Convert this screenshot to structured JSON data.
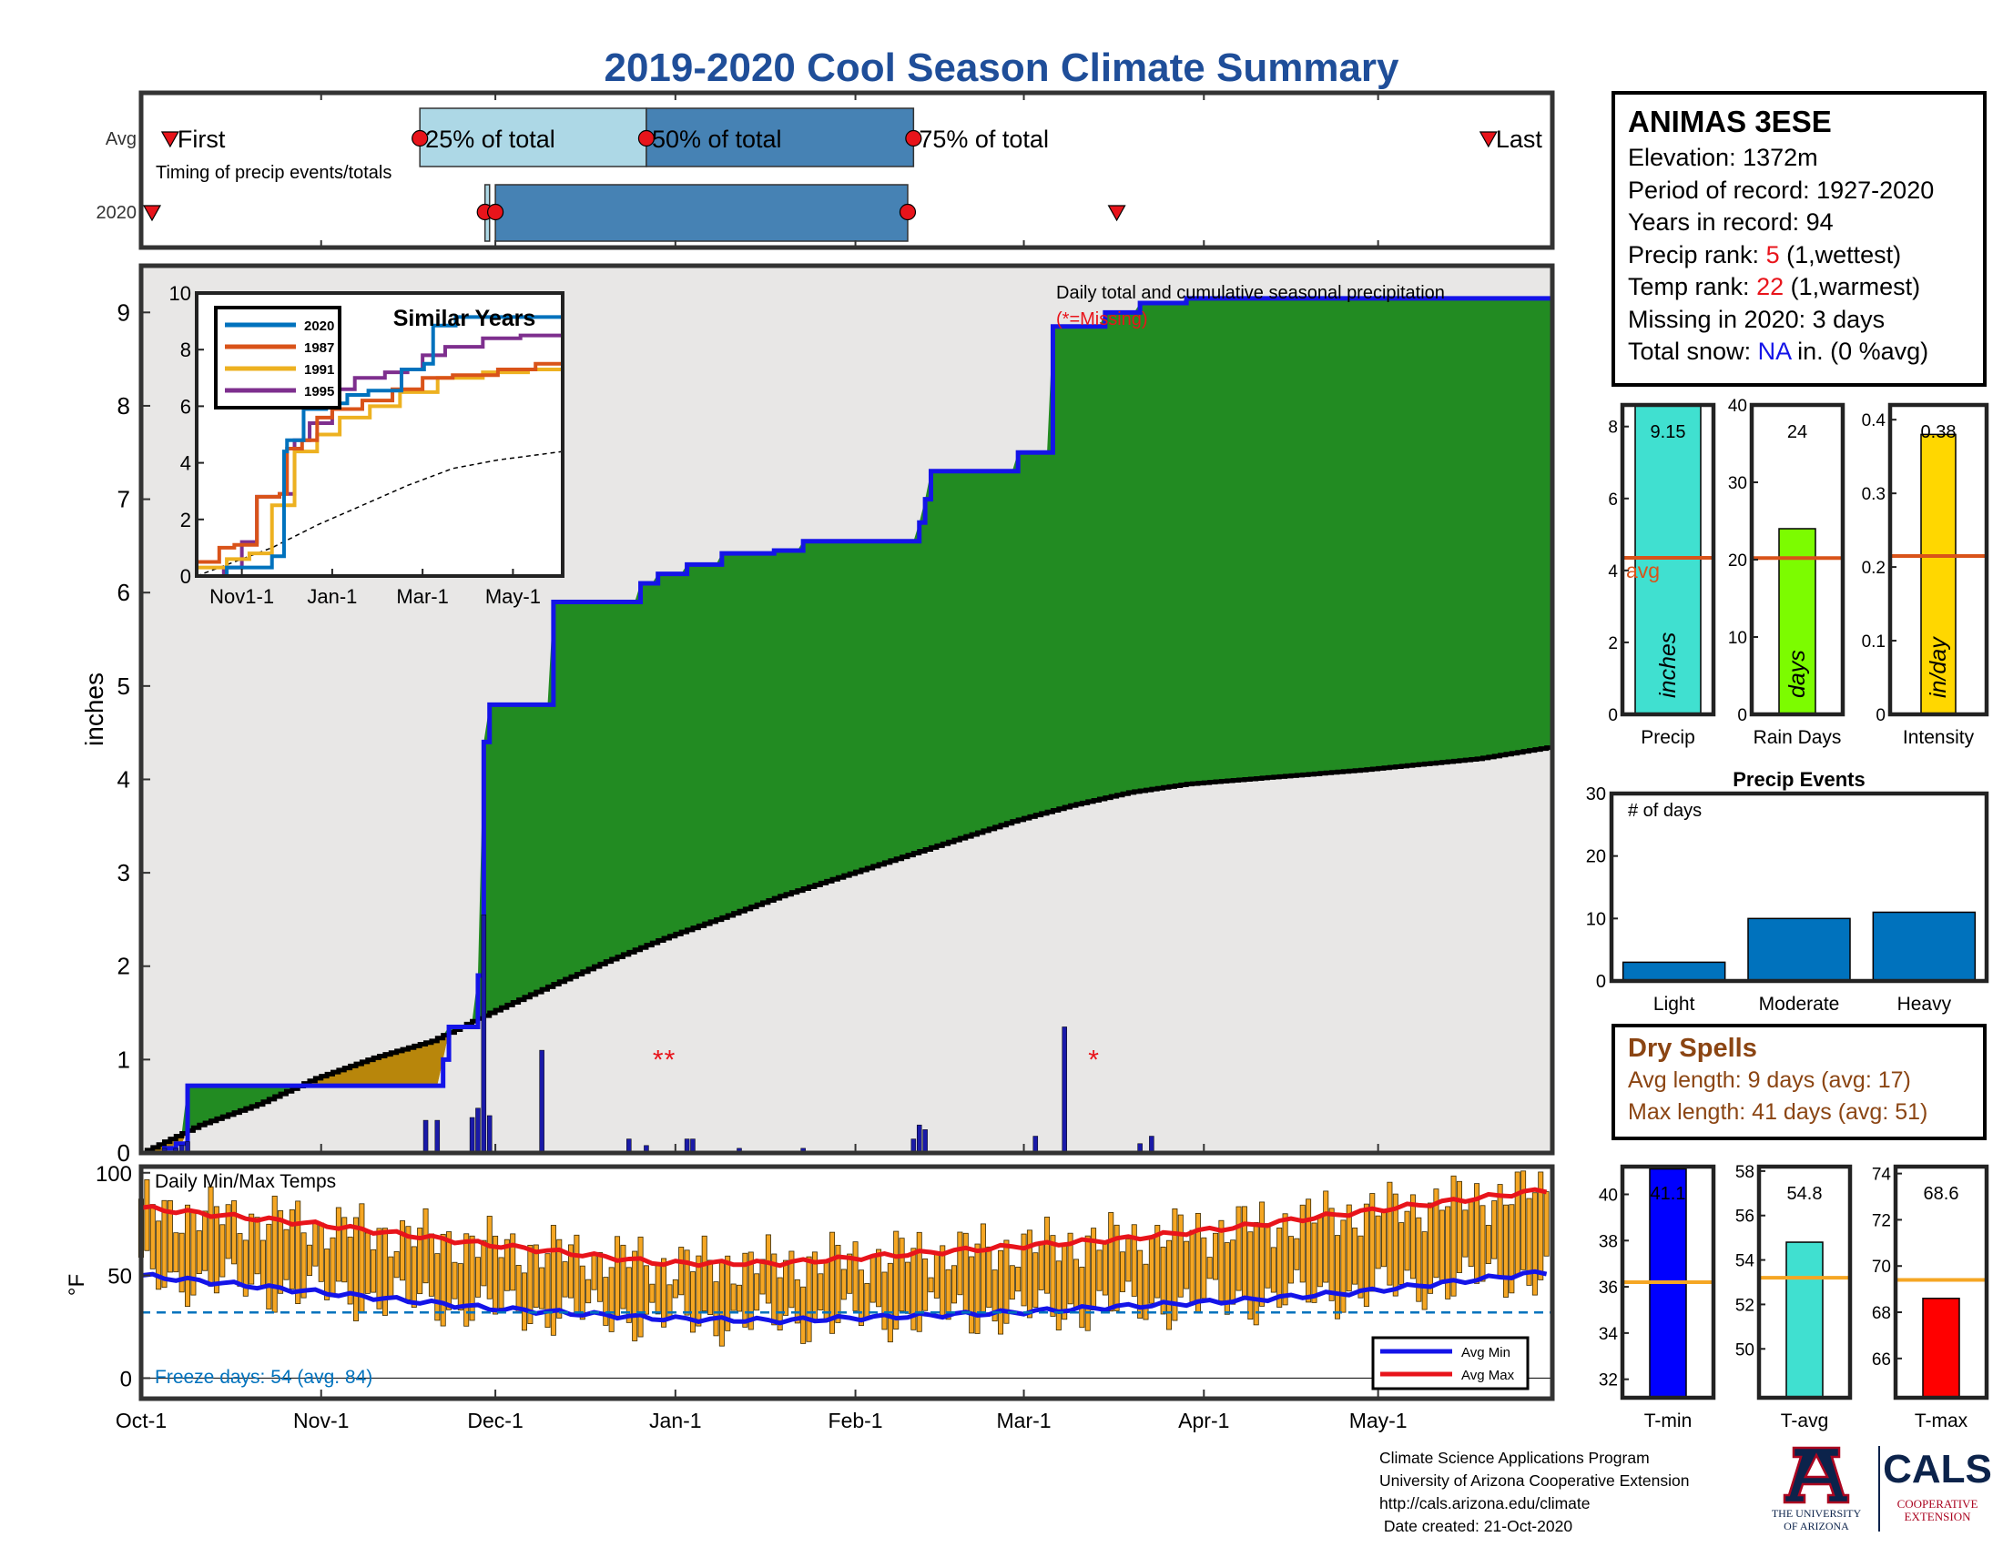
{
  "title": "2019-2020 Cool Season Climate Summary",
  "station": {
    "name": "ANIMAS 3ESE",
    "lines": [
      {
        "label": "Elevation: ",
        "value": "1372m",
        "value_color": "",
        "suffix": ""
      },
      {
        "label": "Period of record: ",
        "value": "1927-2020",
        "value_color": "",
        "suffix": ""
      },
      {
        "label": "Years in record: ",
        "value": "94",
        "value_color": "",
        "suffix": ""
      },
      {
        "label": "Precip rank: ",
        "value": "5",
        "value_color": "red",
        "suffix": " (1,wettest)"
      },
      {
        "label": "Temp rank: ",
        "value": "22",
        "value_color": "red",
        "suffix": " (1,warmest)"
      },
      {
        "label": "Missing in 2020: ",
        "value": "3 days",
        "value_color": "",
        "suffix": ""
      },
      {
        "label": "Total snow: ",
        "value": "NA",
        "value_color": "blue",
        "suffix": " in. (0 %avg)"
      }
    ]
  },
  "dry_spells": {
    "title": "Dry Spells",
    "avg": "Avg length: 9 days (avg: 17)",
    "max": "Max length: 41 days (avg: 51)"
  },
  "credits": {
    "line1": "Climate Science Applications Program",
    "line2": "University of Arizona Cooperative Extension",
    "line3": "http://cals.arizona.edu/climate",
    "line4": " Date created: 21-Oct-2020"
  },
  "logos": {
    "ua_text1": "THE UNIVERSITY",
    "ua_text2": "OF ARIZONA",
    "cals_text": "CALS",
    "cals_sub1": "COOPERATIVE",
    "cals_sub2": "EXTENSION"
  },
  "chart_data": [
    {
      "type": "bar",
      "id": "timing",
      "title": "Timing of precip events/totals",
      "categories": [
        "Avg",
        "2020"
      ],
      "labels": {
        "first": "First",
        "p25": "25% of total",
        "p50": "50% of total",
        "p75": "75% of total",
        "last": "Last"
      },
      "avg": {
        "first": "Oct-6",
        "p25": "Nov-18",
        "p50": "Dec-27",
        "p75": "Feb-11",
        "last": "May-20"
      },
      "year2020": {
        "first": "Oct-1",
        "p25": "Nov-30",
        "p50": "Dec-1",
        "p75": "Feb-10",
        "last": "Mar-17"
      }
    },
    {
      "type": "area",
      "id": "precip",
      "title": "Daily total and cumulative seasonal precipitation",
      "subtitle": "(*=Missing)",
      "ylabel": "inches",
      "ylim": [
        0,
        9.5
      ],
      "yticks": [
        0,
        1,
        2,
        3,
        4,
        5,
        6,
        7,
        8,
        9
      ],
      "xticks": [
        "Oct-1",
        "Nov-1",
        "Dec-1",
        "Jan-1",
        "Feb-1",
        "Mar-1",
        "Apr-1",
        "May-1"
      ],
      "x_units": "day of season (Oct-1 = 0)",
      "cumulative_2020": [
        [
          0,
          0
        ],
        [
          4,
          0.05
        ],
        [
          6,
          0.1
        ],
        [
          7,
          0.1
        ],
        [
          8,
          0.72
        ],
        [
          20,
          0.72
        ],
        [
          40,
          0.72
        ],
        [
          50,
          0.72
        ],
        [
          51,
          0.72
        ],
        [
          52,
          1.0
        ],
        [
          53,
          1.35
        ],
        [
          57,
          1.35
        ],
        [
          58,
          1.9
        ],
        [
          59,
          4.4
        ],
        [
          60,
          4.8
        ],
        [
          70,
          4.8
        ],
        [
          71,
          5.9
        ],
        [
          85,
          5.9
        ],
        [
          86,
          6.1
        ],
        [
          89,
          6.2
        ],
        [
          94,
          6.3
        ],
        [
          100,
          6.42
        ],
        [
          109,
          6.45
        ],
        [
          114,
          6.55
        ],
        [
          133,
          6.55
        ],
        [
          134,
          6.75
        ],
        [
          135,
          7.0
        ],
        [
          136,
          7.3
        ],
        [
          145,
          7.3
        ],
        [
          150,
          7.3
        ],
        [
          151,
          7.5
        ],
        [
          156,
          7.5
        ],
        [
          157,
          8.85
        ],
        [
          165,
          8.85
        ],
        [
          166,
          9.0
        ],
        [
          172,
          9.1
        ],
        [
          180,
          9.15
        ],
        [
          243,
          9.15
        ]
      ],
      "avg_cumulative": [
        [
          0,
          0
        ],
        [
          10,
          0.3
        ],
        [
          20,
          0.52
        ],
        [
          30,
          0.8
        ],
        [
          40,
          1.02
        ],
        [
          50,
          1.2
        ],
        [
          60,
          1.5
        ],
        [
          70,
          1.78
        ],
        [
          80,
          2.05
        ],
        [
          90,
          2.3
        ],
        [
          100,
          2.52
        ],
        [
          110,
          2.75
        ],
        [
          120,
          2.95
        ],
        [
          130,
          3.15
        ],
        [
          140,
          3.35
        ],
        [
          150,
          3.55
        ],
        [
          160,
          3.72
        ],
        [
          170,
          3.86
        ],
        [
          180,
          3.95
        ],
        [
          190,
          4.0
        ],
        [
          200,
          4.05
        ],
        [
          210,
          4.1
        ],
        [
          220,
          4.16
        ],
        [
          230,
          4.22
        ],
        [
          243,
          4.35
        ]
      ],
      "daily": [
        [
          4,
          0.05
        ],
        [
          6,
          0.05
        ],
        [
          7,
          0.08
        ],
        [
          8,
          0.12
        ],
        [
          49,
          0.35
        ],
        [
          51,
          0.35
        ],
        [
          57,
          0.38
        ],
        [
          58,
          0.48
        ],
        [
          59,
          2.55
        ],
        [
          60,
          0.4
        ],
        [
          69,
          1.1
        ],
        [
          84,
          0.15
        ],
        [
          87,
          0.08
        ],
        [
          94,
          0.15
        ],
        [
          95,
          0.15
        ],
        [
          103,
          0.05
        ],
        [
          114,
          0.05
        ],
        [
          133,
          0.15
        ],
        [
          134,
          0.3
        ],
        [
          135,
          0.25
        ],
        [
          154,
          0.18
        ],
        [
          159,
          1.35
        ],
        [
          172,
          0.1
        ],
        [
          174,
          0.18
        ]
      ],
      "missing_days": [
        89,
        91,
        164
      ],
      "inset": {
        "title": "Similar Years",
        "xticks": [
          "Nov1-1",
          "Jan-1",
          "Mar-1",
          "May-1"
        ],
        "yticks": [
          0,
          2,
          4,
          6,
          8,
          10
        ],
        "ylim": [
          0,
          10
        ],
        "series": [
          {
            "name": "2020",
            "color": "#0072bd",
            "points": [
              [
                0,
                0
              ],
              [
                20,
                0.3
              ],
              [
                50,
                0.7
              ],
              [
                58,
                4.4
              ],
              [
                60,
                4.8
              ],
              [
                71,
                5.9
              ],
              [
                86,
                6.1
              ],
              [
                100,
                6.4
              ],
              [
                114,
                6.55
              ],
              [
                136,
                7.3
              ],
              [
                151,
                7.5
              ],
              [
                157,
                8.85
              ],
              [
                172,
                9.15
              ],
              [
                243,
                9.15
              ]
            ]
          },
          {
            "name": "1987",
            "color": "#d95319",
            "points": [
              [
                0,
                0.5
              ],
              [
                15,
                1.0
              ],
              [
                25,
                1.1
              ],
              [
                40,
                2.8
              ],
              [
                55,
                2.9
              ],
              [
                60,
                4.5
              ],
              [
                70,
                4.8
              ],
              [
                80,
                5.6
              ],
              [
                90,
                5.9
              ],
              [
                110,
                6.2
              ],
              [
                130,
                6.6
              ],
              [
                150,
                7.0
              ],
              [
                170,
                7.1
              ],
              [
                200,
                7.3
              ],
              [
                225,
                7.5
              ],
              [
                243,
                7.7
              ]
            ]
          },
          {
            "name": "1991",
            "color": "#edb120",
            "points": [
              [
                0,
                0.3
              ],
              [
                20,
                0.6
              ],
              [
                35,
                0.8
              ],
              [
                50,
                2.5
              ],
              [
                65,
                4.4
              ],
              [
                80,
                5.0
              ],
              [
                95,
                5.6
              ],
              [
                115,
                6.0
              ],
              [
                135,
                6.5
              ],
              [
                160,
                7.0
              ],
              [
                190,
                7.2
              ],
              [
                220,
                7.3
              ],
              [
                243,
                7.3
              ]
            ]
          },
          {
            "name": "1995",
            "color": "#7e2f8e",
            "points": [
              [
                0,
                0
              ],
              [
                18,
                0.3
              ],
              [
                30,
                1.2
              ],
              [
                40,
                2.8
              ],
              [
                55,
                2.9
              ],
              [
                65,
                4.8
              ],
              [
                75,
                5.4
              ],
              [
                90,
                6.6
              ],
              [
                105,
                7.0
              ],
              [
                125,
                7.2
              ],
              [
                140,
                7.3
              ],
              [
                150,
                7.8
              ],
              [
                165,
                8.1
              ],
              [
                190,
                8.4
              ],
              [
                215,
                8.5
              ],
              [
                243,
                8.5
              ]
            ]
          }
        ],
        "avg_points": [
          [
            0,
            0
          ],
          [
            20,
            0.4
          ],
          [
            50,
            1.0
          ],
          [
            80,
            1.8
          ],
          [
            110,
            2.5
          ],
          [
            140,
            3.2
          ],
          [
            170,
            3.8
          ],
          [
            200,
            4.1
          ],
          [
            243,
            4.4
          ]
        ]
      }
    },
    {
      "type": "bar",
      "id": "temps",
      "title": "Daily Min/Max Temps",
      "ylabel": "°F",
      "ylim": [
        -10,
        103
      ],
      "yticks": [
        0,
        50,
        100
      ],
      "xticks": [
        "Oct-1",
        "Nov-1",
        "Dec-1",
        "Jan-1",
        "Feb-1",
        "Mar-1",
        "Apr-1",
        "May-1"
      ],
      "freeze_line": 32,
      "freeze_text": "Freeze days: 54 (avg. 84)",
      "legend": [
        "Avg Min",
        "Avg Max"
      ],
      "avg_min": [
        [
          0,
          50
        ],
        [
          30,
          42
        ],
        [
          60,
          34
        ],
        [
          90,
          29
        ],
        [
          110,
          28
        ],
        [
          130,
          30
        ],
        [
          150,
          32
        ],
        [
          170,
          35
        ],
        [
          190,
          38
        ],
        [
          210,
          42
        ],
        [
          243,
          52
        ]
      ],
      "avg_max": [
        [
          0,
          83
        ],
        [
          30,
          75
        ],
        [
          60,
          65
        ],
        [
          90,
          56
        ],
        [
          110,
          56
        ],
        [
          130,
          60
        ],
        [
          150,
          64
        ],
        [
          170,
          68
        ],
        [
          190,
          74
        ],
        [
          210,
          81
        ],
        [
          243,
          92
        ]
      ]
    },
    {
      "type": "bar",
      "id": "precip_summary",
      "xlabel": "Precip",
      "value_label": "9.15",
      "value": 9.15,
      "avg": 4.35,
      "avg_label": "avg",
      "ylim": [
        0,
        8.6
      ],
      "yticks": [
        0,
        2,
        4,
        6,
        8
      ],
      "unit_label": "inches",
      "color": "#40e0d0"
    },
    {
      "type": "bar",
      "id": "raindays_summary",
      "xlabel": "Rain Days",
      "value_label": "24",
      "value": 24,
      "avg": 20.2,
      "ylim": [
        0,
        40
      ],
      "yticks": [
        0,
        10,
        20,
        30,
        40
      ],
      "unit_label": "days",
      "color": "#7cfc00"
    },
    {
      "type": "bar",
      "id": "intensity_summary",
      "xlabel": "Intensity",
      "value_label": "0.38",
      "value": 0.38,
      "avg": 0.215,
      "ylim": [
        0,
        0.42
      ],
      "yticks": [
        0,
        0.1,
        0.2,
        0.3,
        0.4
      ],
      "unit_label": "in/day",
      "color": "#ffd700"
    },
    {
      "type": "bar",
      "id": "precip_events",
      "title": "Precip Events",
      "ylabel_inside": "# of days",
      "categories": [
        "Light",
        "Moderate",
        "Heavy"
      ],
      "values": [
        3,
        10,
        11
      ],
      "ylim": [
        0,
        30
      ],
      "yticks": [
        0,
        10,
        20,
        30
      ],
      "color": "#0072bd"
    },
    {
      "type": "bar",
      "id": "tmin_summary",
      "xlabel": "T-min",
      "value_label": "41.1",
      "value": 41.1,
      "avg": 36.2,
      "ylim": [
        31.2,
        41.2
      ],
      "yticks": [
        32,
        34,
        36,
        38,
        40
      ],
      "color": "#0000ff"
    },
    {
      "type": "bar",
      "id": "tavg_summary",
      "xlabel": "T-avg",
      "value_label": "54.8",
      "value": 54.8,
      "avg": 53.2,
      "ylim": [
        47.8,
        58.2
      ],
      "yticks": [
        50,
        52,
        54,
        56,
        58
      ],
      "color": "#40e0d0"
    },
    {
      "type": "bar",
      "id": "tmax_summary",
      "xlabel": "T-max",
      "value_label": "68.6",
      "value": 68.6,
      "avg": 69.4,
      "ylim": [
        64.3,
        74.3
      ],
      "yticks": [
        66,
        68,
        70,
        72,
        74
      ],
      "color": "#ff0000"
    }
  ]
}
